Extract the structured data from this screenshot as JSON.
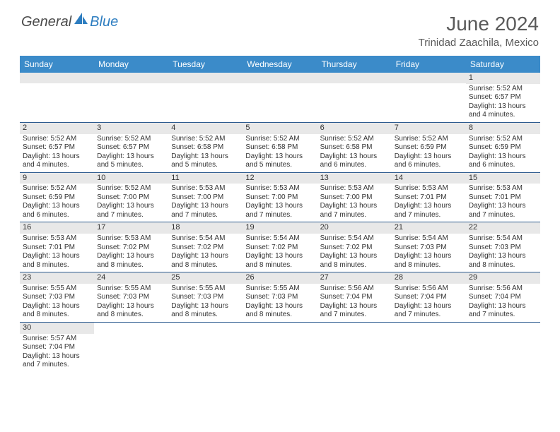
{
  "logo": {
    "general": "General",
    "blue": "Blue"
  },
  "title": "June 2024",
  "location": "Trinidad Zaachila, Mexico",
  "colors": {
    "header_bg": "#3b8bc9",
    "header_text": "#ffffff",
    "daynum_bg": "#e8e8e8",
    "cell_border": "#2d5b8f",
    "logo_blue": "#2d7dc0",
    "text": "#333333"
  },
  "weekdays": [
    "Sunday",
    "Monday",
    "Tuesday",
    "Wednesday",
    "Thursday",
    "Friday",
    "Saturday"
  ],
  "weeks": [
    [
      null,
      null,
      null,
      null,
      null,
      null,
      {
        "n": "1",
        "sr": "5:52 AM",
        "ss": "6:57 PM",
        "dl": "13 hours and 4 minutes."
      }
    ],
    [
      {
        "n": "2",
        "sr": "5:52 AM",
        "ss": "6:57 PM",
        "dl": "13 hours and 4 minutes."
      },
      {
        "n": "3",
        "sr": "5:52 AM",
        "ss": "6:57 PM",
        "dl": "13 hours and 5 minutes."
      },
      {
        "n": "4",
        "sr": "5:52 AM",
        "ss": "6:58 PM",
        "dl": "13 hours and 5 minutes."
      },
      {
        "n": "5",
        "sr": "5:52 AM",
        "ss": "6:58 PM",
        "dl": "13 hours and 5 minutes."
      },
      {
        "n": "6",
        "sr": "5:52 AM",
        "ss": "6:58 PM",
        "dl": "13 hours and 6 minutes."
      },
      {
        "n": "7",
        "sr": "5:52 AM",
        "ss": "6:59 PM",
        "dl": "13 hours and 6 minutes."
      },
      {
        "n": "8",
        "sr": "5:52 AM",
        "ss": "6:59 PM",
        "dl": "13 hours and 6 minutes."
      }
    ],
    [
      {
        "n": "9",
        "sr": "5:52 AM",
        "ss": "6:59 PM",
        "dl": "13 hours and 6 minutes."
      },
      {
        "n": "10",
        "sr": "5:52 AM",
        "ss": "7:00 PM",
        "dl": "13 hours and 7 minutes."
      },
      {
        "n": "11",
        "sr": "5:53 AM",
        "ss": "7:00 PM",
        "dl": "13 hours and 7 minutes."
      },
      {
        "n": "12",
        "sr": "5:53 AM",
        "ss": "7:00 PM",
        "dl": "13 hours and 7 minutes."
      },
      {
        "n": "13",
        "sr": "5:53 AM",
        "ss": "7:00 PM",
        "dl": "13 hours and 7 minutes."
      },
      {
        "n": "14",
        "sr": "5:53 AM",
        "ss": "7:01 PM",
        "dl": "13 hours and 7 minutes."
      },
      {
        "n": "15",
        "sr": "5:53 AM",
        "ss": "7:01 PM",
        "dl": "13 hours and 7 minutes."
      }
    ],
    [
      {
        "n": "16",
        "sr": "5:53 AM",
        "ss": "7:01 PM",
        "dl": "13 hours and 8 minutes."
      },
      {
        "n": "17",
        "sr": "5:53 AM",
        "ss": "7:02 PM",
        "dl": "13 hours and 8 minutes."
      },
      {
        "n": "18",
        "sr": "5:54 AM",
        "ss": "7:02 PM",
        "dl": "13 hours and 8 minutes."
      },
      {
        "n": "19",
        "sr": "5:54 AM",
        "ss": "7:02 PM",
        "dl": "13 hours and 8 minutes."
      },
      {
        "n": "20",
        "sr": "5:54 AM",
        "ss": "7:02 PM",
        "dl": "13 hours and 8 minutes."
      },
      {
        "n": "21",
        "sr": "5:54 AM",
        "ss": "7:03 PM",
        "dl": "13 hours and 8 minutes."
      },
      {
        "n": "22",
        "sr": "5:54 AM",
        "ss": "7:03 PM",
        "dl": "13 hours and 8 minutes."
      }
    ],
    [
      {
        "n": "23",
        "sr": "5:55 AM",
        "ss": "7:03 PM",
        "dl": "13 hours and 8 minutes."
      },
      {
        "n": "24",
        "sr": "5:55 AM",
        "ss": "7:03 PM",
        "dl": "13 hours and 8 minutes."
      },
      {
        "n": "25",
        "sr": "5:55 AM",
        "ss": "7:03 PM",
        "dl": "13 hours and 8 minutes."
      },
      {
        "n": "26",
        "sr": "5:55 AM",
        "ss": "7:03 PM",
        "dl": "13 hours and 8 minutes."
      },
      {
        "n": "27",
        "sr": "5:56 AM",
        "ss": "7:04 PM",
        "dl": "13 hours and 7 minutes."
      },
      {
        "n": "28",
        "sr": "5:56 AM",
        "ss": "7:04 PM",
        "dl": "13 hours and 7 minutes."
      },
      {
        "n": "29",
        "sr": "5:56 AM",
        "ss": "7:04 PM",
        "dl": "13 hours and 7 minutes."
      }
    ],
    [
      {
        "n": "30",
        "sr": "5:57 AM",
        "ss": "7:04 PM",
        "dl": "13 hours and 7 minutes."
      },
      null,
      null,
      null,
      null,
      null,
      null
    ]
  ],
  "labels": {
    "sunrise": "Sunrise: ",
    "sunset": "Sunset: ",
    "daylight": "Daylight: "
  }
}
